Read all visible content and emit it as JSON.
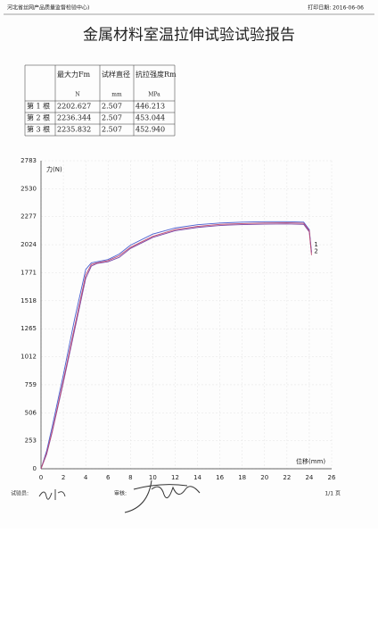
{
  "header": {
    "org": "河北省丝网产品质量监督检验中心)",
    "print_date": "打印日期: 2016-06-06"
  },
  "title": "金属材料室温拉伸试验试验报告",
  "table": {
    "columns": [
      "最大力Fm",
      "试样直径",
      "抗拉强度Rm"
    ],
    "units": [
      "N",
      "mm",
      "MPa"
    ],
    "rows": [
      [
        "第 1 根",
        "2202.627",
        "2.507",
        "446.213"
      ],
      [
        "第 2 根",
        "2236.344",
        "2.507",
        "453.044"
      ],
      [
        "第 3 根",
        "2235.832",
        "2.507",
        "452.940"
      ]
    ]
  },
  "chart_data": {
    "type": "line",
    "x_label": "位移(mm)",
    "y_label": "力(N)",
    "x": [
      0,
      0.5,
      1,
      2,
      3,
      4,
      4.5,
      5,
      6,
      7,
      8,
      10,
      12,
      14,
      16,
      18,
      20,
      22,
      23.5,
      24,
      24.2
    ],
    "series": [
      {
        "name": "1",
        "color": "#4a5fd0",
        "values": [
          0,
          160,
          380,
          850,
          1350,
          1800,
          1860,
          1870,
          1890,
          1940,
          2020,
          2120,
          2175,
          2205,
          2220,
          2228,
          2232,
          2232,
          2228,
          2160,
          1960
        ]
      },
      {
        "name": "2",
        "color": "#7a4aa8",
        "values": [
          0,
          130,
          330,
          780,
          1250,
          1720,
          1830,
          1855,
          1870,
          1910,
          1990,
          2090,
          2150,
          2180,
          2198,
          2206,
          2210,
          2212,
          2208,
          2140,
          1950
        ]
      },
      {
        "color": "#c04a70",
        "values": [
          0,
          140,
          340,
          800,
          1280,
          1750,
          1845,
          1860,
          1880,
          1925,
          2000,
          2100,
          2160,
          2190,
          2208,
          2215,
          2220,
          2222,
          2218,
          2150,
          1930
        ]
      }
    ],
    "xlim": [
      0,
      26
    ],
    "xticks": [
      0,
      2,
      4,
      6,
      8,
      10,
      12,
      14,
      16,
      18,
      20,
      22,
      24,
      26
    ],
    "ylim": [
      0,
      2783
    ],
    "yticks": [
      0,
      253,
      506,
      759,
      1012,
      1265,
      1518,
      1771,
      2024,
      2277,
      2530,
      2783
    ],
    "grid": true
  },
  "footer": {
    "tester": "试验员:",
    "reviewer": "审核:",
    "page": "1/1 页"
  }
}
